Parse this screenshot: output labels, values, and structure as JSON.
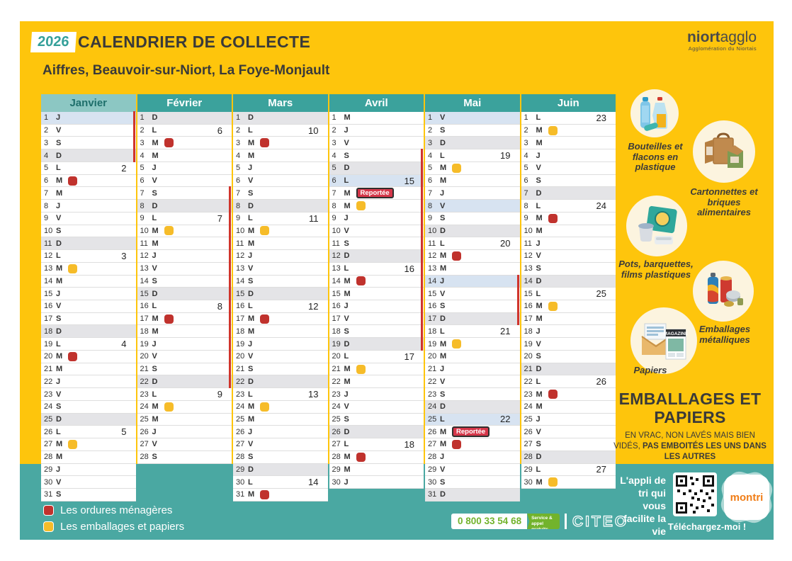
{
  "header": {
    "year": "2026",
    "title": "CALENDRIER DE COLLECTE",
    "subtitle": "Aiffres, Beauvoir-sur-Niort, La Foye-Monjault"
  },
  "logo": {
    "bold": "niort",
    "light": "agglo",
    "tagline": "Agglomération du Niortais"
  },
  "colors": {
    "yellow": "#FEC50C",
    "teal": "#4AA8A2",
    "red_marker": "#C0322D",
    "yellow_marker": "#F6BC29",
    "holiday_blue": "#D7E3F1",
    "sunday_gray": "#E4E4E7"
  },
  "months": [
    {
      "name": "Janvier",
      "header_style": "light",
      "days": [
        {
          "n": 1,
          "d": "J",
          "bg": "h",
          "bar": 1
        },
        {
          "n": 2,
          "d": "V",
          "bar": 1
        },
        {
          "n": 3,
          "d": "S",
          "bar": 1
        },
        {
          "n": 4,
          "d": "D",
          "bg": "s",
          "bar": 1
        },
        {
          "n": 5,
          "d": "L",
          "w": 2
        },
        {
          "n": 6,
          "d": "M",
          "m": "r"
        },
        {
          "n": 7,
          "d": "M"
        },
        {
          "n": 8,
          "d": "J"
        },
        {
          "n": 9,
          "d": "V"
        },
        {
          "n": 10,
          "d": "S"
        },
        {
          "n": 11,
          "d": "D",
          "bg": "s"
        },
        {
          "n": 12,
          "d": "L",
          "w": 3
        },
        {
          "n": 13,
          "d": "M",
          "m": "y"
        },
        {
          "n": 14,
          "d": "M"
        },
        {
          "n": 15,
          "d": "J"
        },
        {
          "n": 16,
          "d": "V"
        },
        {
          "n": 17,
          "d": "S"
        },
        {
          "n": 18,
          "d": "D",
          "bg": "s"
        },
        {
          "n": 19,
          "d": "L",
          "w": 4
        },
        {
          "n": 20,
          "d": "M",
          "m": "r"
        },
        {
          "n": 21,
          "d": "M"
        },
        {
          "n": 22,
          "d": "J"
        },
        {
          "n": 23,
          "d": "V"
        },
        {
          "n": 24,
          "d": "S"
        },
        {
          "n": 25,
          "d": "D",
          "bg": "s"
        },
        {
          "n": 26,
          "d": "L",
          "w": 5
        },
        {
          "n": 27,
          "d": "M",
          "m": "y"
        },
        {
          "n": 28,
          "d": "M"
        },
        {
          "n": 29,
          "d": "J"
        },
        {
          "n": 30,
          "d": "V"
        },
        {
          "n": 31,
          "d": "S"
        }
      ]
    },
    {
      "name": "Février",
      "header_style": "dark",
      "days": [
        {
          "n": 1,
          "d": "D",
          "bg": "s"
        },
        {
          "n": 2,
          "d": "L",
          "w": 6
        },
        {
          "n": 3,
          "d": "M",
          "m": "r"
        },
        {
          "n": 4,
          "d": "M"
        },
        {
          "n": 5,
          "d": "J"
        },
        {
          "n": 6,
          "d": "V"
        },
        {
          "n": 7,
          "d": "S",
          "bar": 1
        },
        {
          "n": 8,
          "d": "D",
          "bg": "s",
          "bar": 1
        },
        {
          "n": 9,
          "d": "L",
          "w": 7,
          "bar": 1
        },
        {
          "n": 10,
          "d": "M",
          "m": "y",
          "bar": 1
        },
        {
          "n": 11,
          "d": "M",
          "bar": 1
        },
        {
          "n": 12,
          "d": "J",
          "bar": 1
        },
        {
          "n": 13,
          "d": "V",
          "bar": 1
        },
        {
          "n": 14,
          "d": "S",
          "bar": 1
        },
        {
          "n": 15,
          "d": "D",
          "bg": "s",
          "bar": 1
        },
        {
          "n": 16,
          "d": "L",
          "w": 8,
          "bar": 1
        },
        {
          "n": 17,
          "d": "M",
          "m": "r",
          "bar": 1
        },
        {
          "n": 18,
          "d": "M",
          "bar": 1
        },
        {
          "n": 19,
          "d": "J",
          "bar": 1
        },
        {
          "n": 20,
          "d": "V",
          "bar": 1
        },
        {
          "n": 21,
          "d": "S",
          "bar": 1
        },
        {
          "n": 22,
          "d": "D",
          "bg": "s",
          "bar": 1
        },
        {
          "n": 23,
          "d": "L",
          "w": 9
        },
        {
          "n": 24,
          "d": "M",
          "m": "y"
        },
        {
          "n": 25,
          "d": "M"
        },
        {
          "n": 26,
          "d": "J"
        },
        {
          "n": 27,
          "d": "V"
        },
        {
          "n": 28,
          "d": "S"
        }
      ]
    },
    {
      "name": "Mars",
      "header_style": "dark",
      "days": [
        {
          "n": 1,
          "d": "D",
          "bg": "s"
        },
        {
          "n": 2,
          "d": "L",
          "w": 10
        },
        {
          "n": 3,
          "d": "M",
          "m": "r"
        },
        {
          "n": 4,
          "d": "M"
        },
        {
          "n": 5,
          "d": "J"
        },
        {
          "n": 6,
          "d": "V"
        },
        {
          "n": 7,
          "d": "S"
        },
        {
          "n": 8,
          "d": "D",
          "bg": "s"
        },
        {
          "n": 9,
          "d": "L",
          "w": 11
        },
        {
          "n": 10,
          "d": "M",
          "m": "y"
        },
        {
          "n": 11,
          "d": "M"
        },
        {
          "n": 12,
          "d": "J"
        },
        {
          "n": 13,
          "d": "V"
        },
        {
          "n": 14,
          "d": "S"
        },
        {
          "n": 15,
          "d": "D",
          "bg": "s"
        },
        {
          "n": 16,
          "d": "L",
          "w": 12
        },
        {
          "n": 17,
          "d": "M",
          "m": "r"
        },
        {
          "n": 18,
          "d": "M"
        },
        {
          "n": 19,
          "d": "J"
        },
        {
          "n": 20,
          "d": "V"
        },
        {
          "n": 21,
          "d": "S"
        },
        {
          "n": 22,
          "d": "D",
          "bg": "s"
        },
        {
          "n": 23,
          "d": "L",
          "w": 13
        },
        {
          "n": 24,
          "d": "M",
          "m": "y"
        },
        {
          "n": 25,
          "d": "M"
        },
        {
          "n": 26,
          "d": "J"
        },
        {
          "n": 27,
          "d": "V"
        },
        {
          "n": 28,
          "d": "S"
        },
        {
          "n": 29,
          "d": "D",
          "bg": "s"
        },
        {
          "n": 30,
          "d": "L",
          "w": 14
        },
        {
          "n": 31,
          "d": "M",
          "m": "r"
        }
      ]
    },
    {
      "name": "Avril",
      "header_style": "dark",
      "days": [
        {
          "n": 1,
          "d": "M"
        },
        {
          "n": 2,
          "d": "J"
        },
        {
          "n": 3,
          "d": "V"
        },
        {
          "n": 4,
          "d": "S",
          "bar": 1
        },
        {
          "n": 5,
          "d": "D",
          "bg": "s",
          "bar": 1
        },
        {
          "n": 6,
          "d": "L",
          "bg": "h",
          "w": 15,
          "bar": 1
        },
        {
          "n": 7,
          "d": "M",
          "badge": "Reportée",
          "bar": 1
        },
        {
          "n": 8,
          "d": "M",
          "m": "y",
          "bar": 1
        },
        {
          "n": 9,
          "d": "J",
          "bar": 1
        },
        {
          "n": 10,
          "d": "V",
          "bar": 1
        },
        {
          "n": 11,
          "d": "S",
          "bar": 1
        },
        {
          "n": 12,
          "d": "D",
          "bg": "s",
          "bar": 1
        },
        {
          "n": 13,
          "d": "L",
          "w": 16,
          "bar": 1
        },
        {
          "n": 14,
          "d": "M",
          "m": "r",
          "bar": 1
        },
        {
          "n": 15,
          "d": "M",
          "bar": 1
        },
        {
          "n": 16,
          "d": "J",
          "bar": 1
        },
        {
          "n": 17,
          "d": "V",
          "bar": 1
        },
        {
          "n": 18,
          "d": "S",
          "bar": 1
        },
        {
          "n": 19,
          "d": "D",
          "bg": "s",
          "bar": 1
        },
        {
          "n": 20,
          "d": "L",
          "w": 17
        },
        {
          "n": 21,
          "d": "M",
          "m": "y"
        },
        {
          "n": 22,
          "d": "M"
        },
        {
          "n": 23,
          "d": "J"
        },
        {
          "n": 24,
          "d": "V"
        },
        {
          "n": 25,
          "d": "S"
        },
        {
          "n": 26,
          "d": "D",
          "bg": "s"
        },
        {
          "n": 27,
          "d": "L",
          "w": 18
        },
        {
          "n": 28,
          "d": "M",
          "m": "r"
        },
        {
          "n": 29,
          "d": "M"
        },
        {
          "n": 30,
          "d": "J"
        }
      ]
    },
    {
      "name": "Mai",
      "header_style": "dark",
      "days": [
        {
          "n": 1,
          "d": "V",
          "bg": "h"
        },
        {
          "n": 2,
          "d": "S"
        },
        {
          "n": 3,
          "d": "D",
          "bg": "s"
        },
        {
          "n": 4,
          "d": "L",
          "w": 19
        },
        {
          "n": 5,
          "d": "M",
          "m": "y"
        },
        {
          "n": 6,
          "d": "M"
        },
        {
          "n": 7,
          "d": "J"
        },
        {
          "n": 8,
          "d": "V",
          "bg": "h"
        },
        {
          "n": 9,
          "d": "S"
        },
        {
          "n": 10,
          "d": "D",
          "bg": "s"
        },
        {
          "n": 11,
          "d": "L",
          "w": 20
        },
        {
          "n": 12,
          "d": "M",
          "m": "r"
        },
        {
          "n": 13,
          "d": "M"
        },
        {
          "n": 14,
          "d": "J",
          "bg": "h",
          "bar": 1
        },
        {
          "n": 15,
          "d": "V",
          "bar": 1
        },
        {
          "n": 16,
          "d": "S",
          "bar": 1
        },
        {
          "n": 17,
          "d": "D",
          "bg": "s",
          "bar": 1
        },
        {
          "n": 18,
          "d": "L",
          "w": 21
        },
        {
          "n": 19,
          "d": "M",
          "m": "y"
        },
        {
          "n": 20,
          "d": "M"
        },
        {
          "n": 21,
          "d": "J"
        },
        {
          "n": 22,
          "d": "V"
        },
        {
          "n": 23,
          "d": "S"
        },
        {
          "n": 24,
          "d": "D",
          "bg": "s"
        },
        {
          "n": 25,
          "d": "L",
          "bg": "h",
          "w": 22
        },
        {
          "n": 26,
          "d": "M",
          "badge": "Reportée"
        },
        {
          "n": 27,
          "d": "M",
          "m": "r"
        },
        {
          "n": 28,
          "d": "J"
        },
        {
          "n": 29,
          "d": "V"
        },
        {
          "n": 30,
          "d": "S"
        },
        {
          "n": 31,
          "d": "D",
          "bg": "s"
        }
      ]
    },
    {
      "name": "Juin",
      "header_style": "dark",
      "days": [
        {
          "n": 1,
          "d": "L",
          "w": 23
        },
        {
          "n": 2,
          "d": "M",
          "m": "y"
        },
        {
          "n": 3,
          "d": "M"
        },
        {
          "n": 4,
          "d": "J"
        },
        {
          "n": 5,
          "d": "V"
        },
        {
          "n": 6,
          "d": "S"
        },
        {
          "n": 7,
          "d": "D",
          "bg": "s"
        },
        {
          "n": 8,
          "d": "L",
          "w": 24
        },
        {
          "n": 9,
          "d": "M",
          "m": "r"
        },
        {
          "n": 10,
          "d": "M"
        },
        {
          "n": 11,
          "d": "J"
        },
        {
          "n": 12,
          "d": "V"
        },
        {
          "n": 13,
          "d": "S"
        },
        {
          "n": 14,
          "d": "D",
          "bg": "s"
        },
        {
          "n": 15,
          "d": "L",
          "w": 25
        },
        {
          "n": 16,
          "d": "M",
          "m": "y"
        },
        {
          "n": 17,
          "d": "M"
        },
        {
          "n": 18,
          "d": "J"
        },
        {
          "n": 19,
          "d": "V"
        },
        {
          "n": 20,
          "d": "S"
        },
        {
          "n": 21,
          "d": "D",
          "bg": "s"
        },
        {
          "n": 22,
          "d": "L",
          "w": 26
        },
        {
          "n": 23,
          "d": "M",
          "m": "r"
        },
        {
          "n": 24,
          "d": "M"
        },
        {
          "n": 25,
          "d": "J"
        },
        {
          "n": 26,
          "d": "V"
        },
        {
          "n": 27,
          "d": "S"
        },
        {
          "n": 28,
          "d": "D",
          "bg": "s"
        },
        {
          "n": 29,
          "d": "L",
          "w": 27
        },
        {
          "n": 30,
          "d": "M",
          "m": "y"
        }
      ]
    }
  ],
  "sidebar": {
    "items": [
      {
        "label": "Bouteilles et flacons en plastique",
        "icon": "plastic-bottles-icon"
      },
      {
        "label": "Cartonnettes et briques alimentaires",
        "icon": "cardboard-cartons-icon"
      },
      {
        "label": "Pots, barquettes, films plastiques",
        "icon": "plastic-pots-icon"
      },
      {
        "label": "Emballages métalliques",
        "icon": "metal-cans-icon"
      },
      {
        "label": "Papiers",
        "icon": "papers-icon"
      }
    ],
    "title": "EMBALLAGES ET PAPIERS",
    "note_normal": "EN VRAC, NON LAVÉS MAIS BIEN VIDÉS, ",
    "note_bold": "PAS EMBOITÉS LES UNS DANS LES AUTRES"
  },
  "legend": [
    {
      "color": "#C0322D",
      "label": "Les ordures ménagères"
    },
    {
      "color": "#F6BC29",
      "label": "Les emballages et papiers"
    }
  ],
  "footer": {
    "phone": "0 800 33 54 68",
    "phone_note": "Service & appel gratuits",
    "citeo": "CITEO"
  },
  "app_promo": {
    "text": "L'appli de tri qui vous facilite la vie",
    "download": "Téléchargez-moi !",
    "brand": "montri"
  }
}
